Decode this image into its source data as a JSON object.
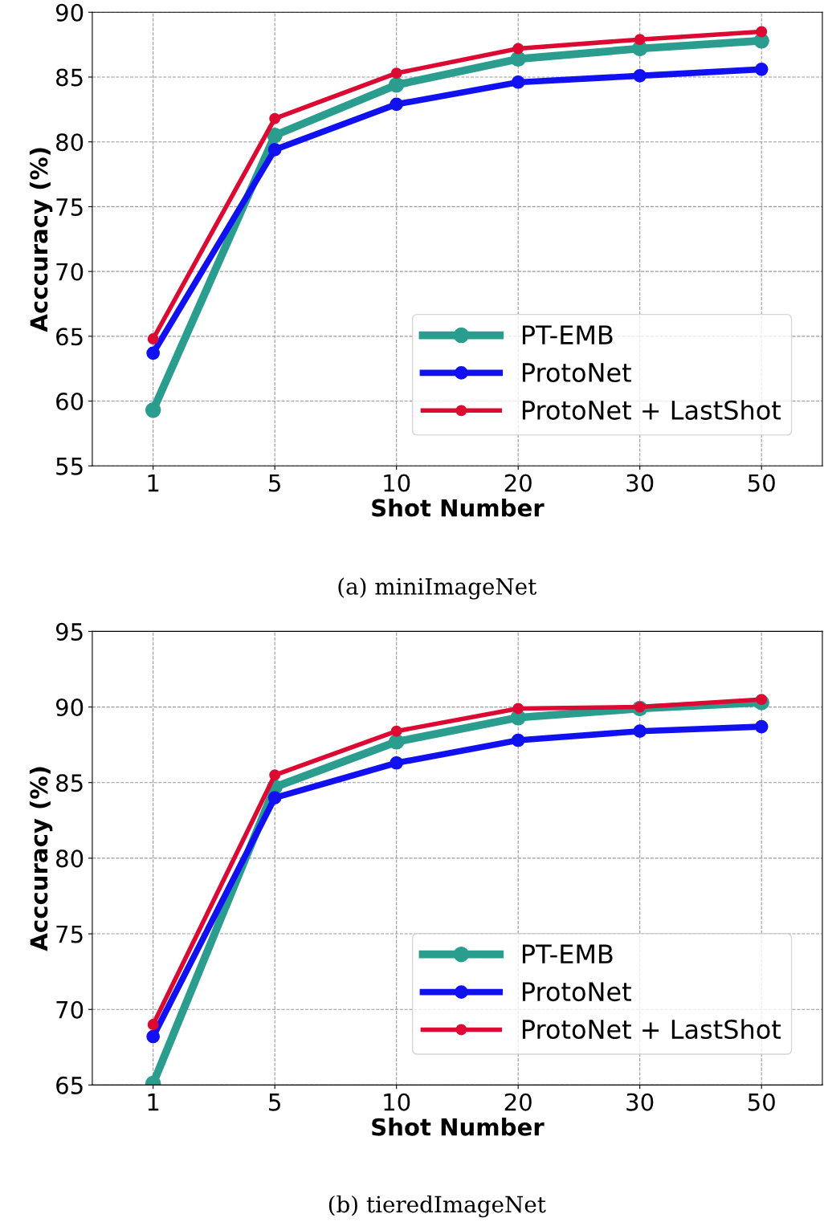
{
  "chart_data": [
    {
      "type": "line",
      "xlabel": "Shot Number",
      "ylabel": "Acccuracy (%)",
      "categories": [
        "1",
        "5",
        "10",
        "20",
        "30",
        "50"
      ],
      "ylim": [
        55,
        90
      ],
      "yticks": [
        55,
        60,
        65,
        70,
        75,
        80,
        85,
        90
      ],
      "grid": true,
      "legend": "bottom right",
      "marker": "circle",
      "line_style": "solid",
      "annotations": [
        "(a) miniImageNet"
      ],
      "series": [
        {
          "name": "PT-EMB",
          "color": "#2a9d8f",
          "values": [
            59.3,
            80.5,
            84.4,
            86.4,
            87.2,
            87.8
          ]
        },
        {
          "name": "ProtoNet",
          "color": "#1010f0",
          "values": [
            63.7,
            79.4,
            82.9,
            84.6,
            85.1,
            85.6
          ]
        },
        {
          "name": "ProtoNet + LastShot",
          "color": "#dc0a32",
          "values": [
            64.8,
            81.8,
            85.3,
            87.2,
            87.9,
            88.5
          ]
        }
      ]
    },
    {
      "type": "line",
      "xlabel": "Shot Number",
      "ylabel": "Acccuracy (%)",
      "categories": [
        "1",
        "5",
        "10",
        "20",
        "30",
        "50"
      ],
      "ylim": [
        65,
        95
      ],
      "yticks": [
        65,
        70,
        75,
        80,
        85,
        90,
        95
      ],
      "grid": true,
      "legend": "bottom right",
      "marker": "circle",
      "line_style": "solid",
      "annotations": [
        "(b) tieredImageNet"
      ],
      "series": [
        {
          "name": "PT-EMB",
          "color": "#2a9d8f",
          "values": [
            65.1,
            84.7,
            87.7,
            89.3,
            89.9,
            90.3
          ]
        },
        {
          "name": "ProtoNet",
          "color": "#1010f0",
          "values": [
            68.2,
            84.0,
            86.3,
            87.8,
            88.4,
            88.7
          ]
        },
        {
          "name": "ProtoNet + LastShot",
          "color": "#dc0a32",
          "values": [
            69.0,
            85.5,
            88.4,
            89.9,
            90.0,
            90.5
          ]
        }
      ]
    }
  ]
}
